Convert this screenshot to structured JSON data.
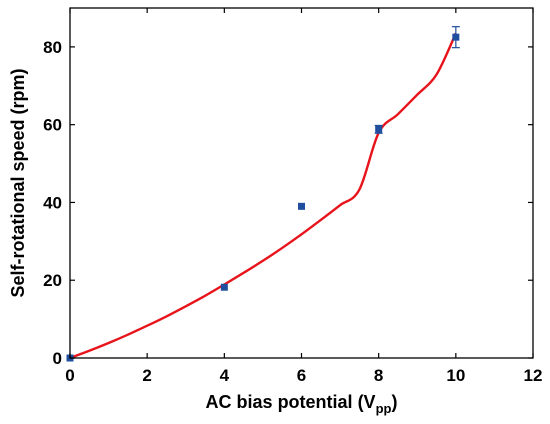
{
  "chart_data": {
    "type": "scatter",
    "xlabel": "AC bias potential (V",
    "xlabel_sub": "pp",
    "xlabel_close": ")",
    "ylabel": "Self-rotational speed (rpm)",
    "xlim": [
      0,
      12
    ],
    "ylim": [
      0,
      90
    ],
    "xticks": [
      0,
      2,
      4,
      6,
      8,
      10,
      12
    ],
    "yticks": [
      0,
      20,
      40,
      60,
      80
    ],
    "grid": false,
    "legend": "none",
    "series": [
      {
        "kind": "points",
        "color": "#1f4e9e",
        "x": [
          0,
          4,
          6,
          8,
          10
        ],
        "y": [
          0,
          18.2,
          39,
          58.8,
          82.5
        ],
        "err": [
          0,
          0,
          0,
          1.0,
          2.7
        ]
      },
      {
        "kind": "fit",
        "color": "#e8141b",
        "x": [
          0,
          0.5,
          1,
          1.5,
          2,
          2.5,
          3,
          3.5,
          4,
          4.5,
          5,
          5.5,
          6,
          6.5,
          7,
          7.5,
          8,
          8.5,
          9,
          9.5,
          10
        ],
        "y": [
          0,
          1.85,
          3.85,
          6.0,
          8.3,
          10.7,
          13.3,
          16.0,
          18.9,
          21.9,
          25.0,
          28.3,
          31.8,
          35.5,
          39.3,
          43.3,
          57.9,
          62.7,
          67.7,
          72.9,
          83.5
        ]
      }
    ]
  }
}
